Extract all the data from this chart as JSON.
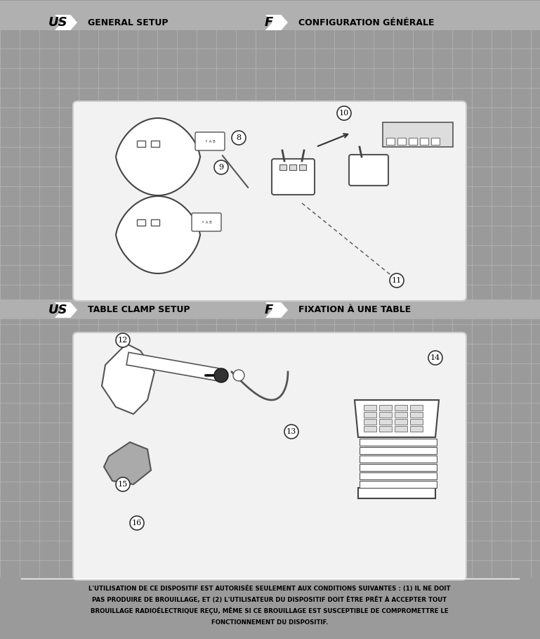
{
  "bg_color": "#9a9a9a",
  "grid_color": "#b0b0b0",
  "panel_bg": "#c8c8c8",
  "white_box_bg": "#f5f5f5",
  "white_box_rounded": true,
  "header1_us": "US",
  "header1_label": "GENERAL SETUP",
  "header1_f": "F",
  "header1_right": "CONFIGURATION GÉNÉRALE",
  "header2_us": "US",
  "header2_label": "TABLE CLAMP SETUP",
  "header2_f": "F",
  "header2_right": "FIXATION À UNE TABLE",
  "footer_text": "L’UTILISATION DE CE DISPOSITIF EST AUTORISÉE SEULEMENT AUX CONDITIONS SUIVANTES : (1) IL NE DOIT\nPAS PRODUIRE DE BROUILLAGE, ET (2) L’UTILISATEUR DU DISPOSITIF DOIT ÊRE PRÊT À ACCEPTER TOUT\nBROUILLAGE RADIOÉLECTRIQUE REÇU, MÊM SI CE BROUILLAGE EST SUSCEPTIBLE DE COMPROMETTRE LE\nFONCTIONNEMENT DU DISPOSITIF.",
  "fig_width": 7.69,
  "fig_height": 9.09,
  "dpi": 100
}
